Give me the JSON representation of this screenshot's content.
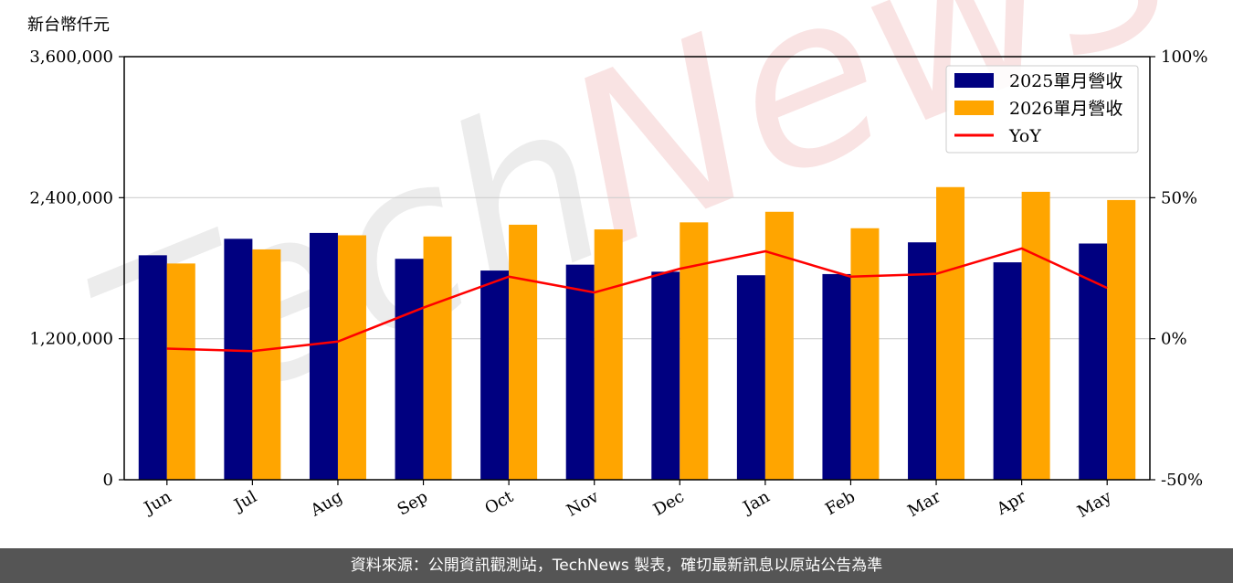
{
  "chart_data": {
    "type": "bar",
    "y_unit_label": "新台幣仟元",
    "categories": [
      "Jun",
      "Jul",
      "Aug",
      "Sep",
      "Oct",
      "Nov",
      "Dec",
      "Jan",
      "Feb",
      "Mar",
      "Apr",
      "May"
    ],
    "series": [
      {
        "name": "2025單月營收",
        "type": "bar",
        "axis": "left",
        "color": "#000080",
        "values": [
          1910000,
          2050000,
          2100000,
          1880000,
          1780000,
          1830000,
          1770000,
          1740000,
          1750000,
          2020000,
          1850000,
          2010000
        ]
      },
      {
        "name": "2026單月營收",
        "type": "bar",
        "axis": "left",
        "color": "#FFA500",
        "values": [
          1840000,
          1960000,
          2080000,
          2070000,
          2170000,
          2130000,
          2190000,
          2280000,
          2140000,
          2490000,
          2450000,
          2380000
        ]
      },
      {
        "name": "YoY",
        "type": "line",
        "axis": "right",
        "color": "#ff0000",
        "values": [
          -3.5,
          -4.4,
          -1.0,
          11.0,
          22.0,
          16.4,
          24.8,
          31.0,
          22.0,
          23.0,
          32.0,
          18.0
        ]
      }
    ],
    "y_left": {
      "lim": [
        0,
        3600000
      ],
      "ticks": [
        0,
        1200000,
        2400000,
        3600000
      ],
      "tick_labels": [
        "0",
        "1,200,000",
        "2,400,000",
        "3,600,000"
      ]
    },
    "y_right": {
      "lim": [
        -50,
        100
      ],
      "ticks": [
        -50,
        0,
        50,
        100
      ],
      "tick_labels": [
        "-50%",
        "0%",
        "50%",
        "100%"
      ]
    },
    "grid": "horizontal",
    "legend_position": "top-right"
  },
  "watermark": {
    "part1": "Tech",
    "part2": "News"
  },
  "footer": {
    "text": "資料來源：公開資訊觀測站，TechNews 製表，確切最新訊息以原站公告為準"
  }
}
